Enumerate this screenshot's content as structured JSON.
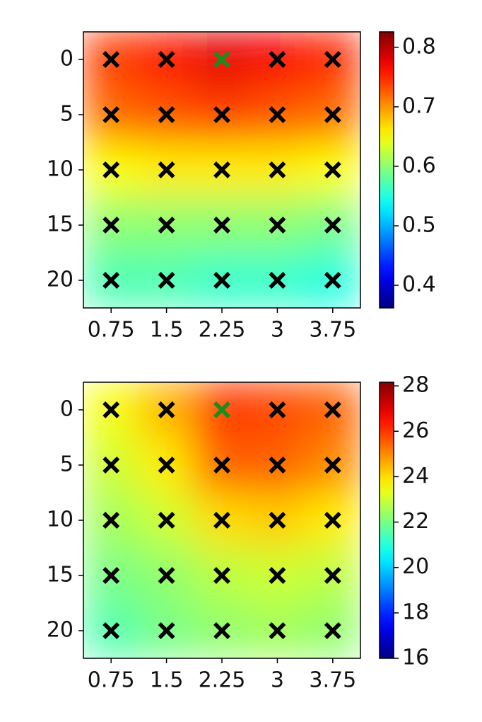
{
  "chart_data": [
    {
      "type": "heatmap",
      "cmap": "jet",
      "x": [
        0.75,
        1.5,
        2.25,
        3,
        3.75
      ],
      "y": [
        0,
        5,
        10,
        15,
        20
      ],
      "values": [
        [
          0.74,
          0.76,
          0.78,
          0.77,
          0.75
        ],
        [
          0.72,
          0.73,
          0.74,
          0.73,
          0.72
        ],
        [
          0.65,
          0.66,
          0.66,
          0.66,
          0.65
        ],
        [
          0.6,
          0.6,
          0.6,
          0.6,
          0.59
        ],
        [
          0.57,
          0.57,
          0.56,
          0.56,
          0.55
        ]
      ],
      "xlim": [
        0.375,
        4.125
      ],
      "xticks": [
        0.75,
        1.5,
        2.25,
        3,
        3.75
      ],
      "ylim": [
        22.5,
        -2.5
      ],
      "yticks": [
        0,
        5,
        10,
        15,
        20
      ],
      "clim": [
        0.362,
        0.826
      ],
      "cticks": [
        0.4,
        0.5,
        0.6,
        0.7,
        0.8
      ],
      "marker_color": "#000000",
      "highlight": {
        "x": 2.25,
        "y": 0
      },
      "highlight_color": "#1f8a1f"
    },
    {
      "type": "heatmap",
      "cmap": "jet",
      "x": [
        0.75,
        1.5,
        2.25,
        3,
        3.75
      ],
      "y": [
        0,
        5,
        10,
        15,
        20
      ],
      "values": [
        [
          23.5,
          24.5,
          26,
          25.8,
          25.5
        ],
        [
          23,
          23.8,
          25.5,
          25.5,
          25
        ],
        [
          22.5,
          23,
          24,
          24.2,
          23.8
        ],
        [
          22,
          22.3,
          22.8,
          23,
          22.8
        ],
        [
          21.5,
          22,
          22.3,
          22.5,
          22.3
        ]
      ],
      "xlim": [
        0.375,
        4.125
      ],
      "xticks": [
        0.75,
        1.5,
        2.25,
        3,
        3.75
      ],
      "ylim": [
        22.5,
        -2.5
      ],
      "yticks": [
        0,
        5,
        10,
        15,
        20
      ],
      "clim": [
        16,
        28.16
      ],
      "cticks": [
        16,
        18,
        20,
        22,
        24,
        26,
        28
      ],
      "marker_color": "#000000",
      "highlight": {
        "x": 2.25,
        "y": 0
      },
      "highlight_color": "#1f8a1f"
    }
  ]
}
